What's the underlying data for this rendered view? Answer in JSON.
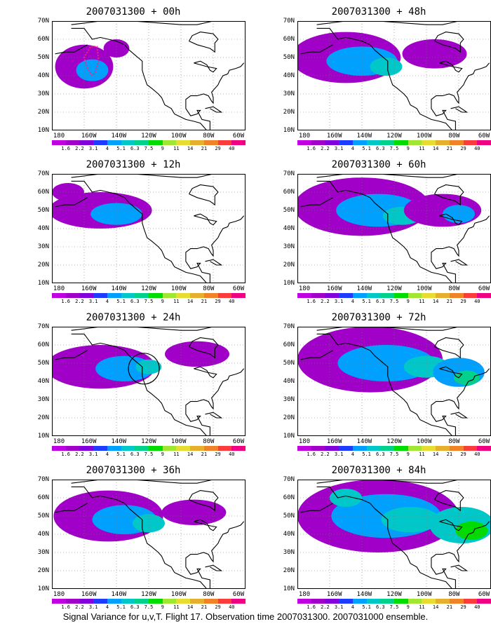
{
  "panels": [
    {
      "title": "2007031300 + 00h",
      "lead": "00h",
      "intensity": 0.25
    },
    {
      "title": "2007031300 + 48h",
      "lead": "48h",
      "intensity": 0.55
    },
    {
      "title": "2007031300 + 12h",
      "lead": "12h",
      "intensity": 0.3
    },
    {
      "title": "2007031300 + 60h",
      "lead": "60h",
      "intensity": 0.65
    },
    {
      "title": "2007031300 + 24h",
      "lead": "24h",
      "intensity": 0.4
    },
    {
      "title": "2007031300 + 72h",
      "lead": "72h",
      "intensity": 0.75
    },
    {
      "title": "2007031300 + 36h",
      "lead": "36h",
      "intensity": 0.5
    },
    {
      "title": "2007031300 + 84h",
      "lead": "84h",
      "intensity": 0.9
    }
  ],
  "axes": {
    "lat_labels": [
      "70N",
      "60N",
      "50N",
      "40N",
      "30N",
      "20N",
      "10N"
    ],
    "lon_labels": [
      "180",
      "160W",
      "140W",
      "120W",
      "100W",
      "80W",
      "60W"
    ]
  },
  "colorbar": {
    "labels": [
      "1.6",
      "2.2",
      "3.1",
      "4",
      "5.1",
      "6.3",
      "7.5",
      "9",
      "11",
      "14",
      "21",
      "29",
      "40"
    ],
    "colors": [
      "#a000c8",
      "#8200dc",
      "#1e3cff",
      "#00a0ff",
      "#00c8c8",
      "#00d28c",
      "#00dc00",
      "#a0e632",
      "#e6dc32",
      "#e6af2d",
      "#f08228",
      "#fa3c3c",
      "#f00082"
    ]
  },
  "footer": "Signal Variance for u,v,T. Flight 17. Observation time 2007031300. 2007031000 ensemble."
}
